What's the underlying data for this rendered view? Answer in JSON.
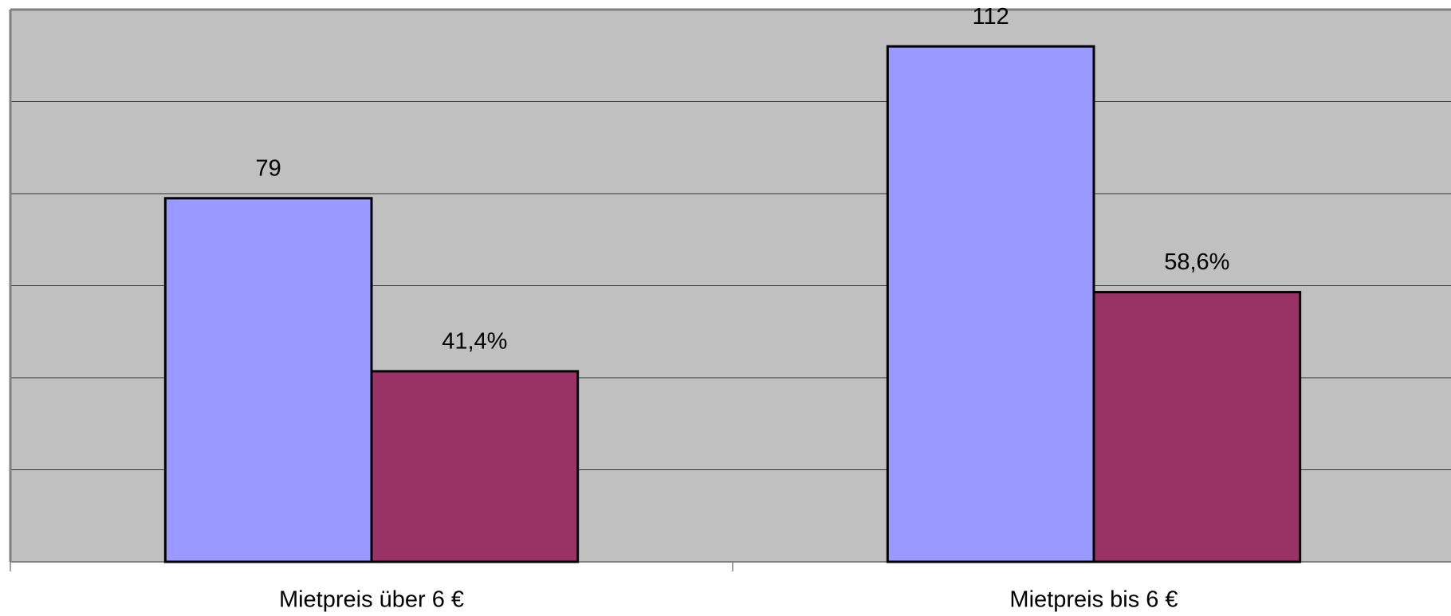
{
  "chart_data": {
    "type": "bar",
    "categories": [
      "Mietpreis über 6 €",
      "Mietpreis bis 6 €"
    ],
    "series": [
      {
        "color": "#9999ff",
        "values": [
          79,
          112
        ]
      },
      {
        "color": "#993366",
        "values": [
          41.4,
          58.6
        ],
        "value_labels": [
          "41,4%",
          "58,6%"
        ]
      }
    ],
    "ylim": [
      0,
      120
    ],
    "yticks": [
      0,
      20,
      40,
      60,
      80,
      100,
      120
    ],
    "grid": true
  }
}
